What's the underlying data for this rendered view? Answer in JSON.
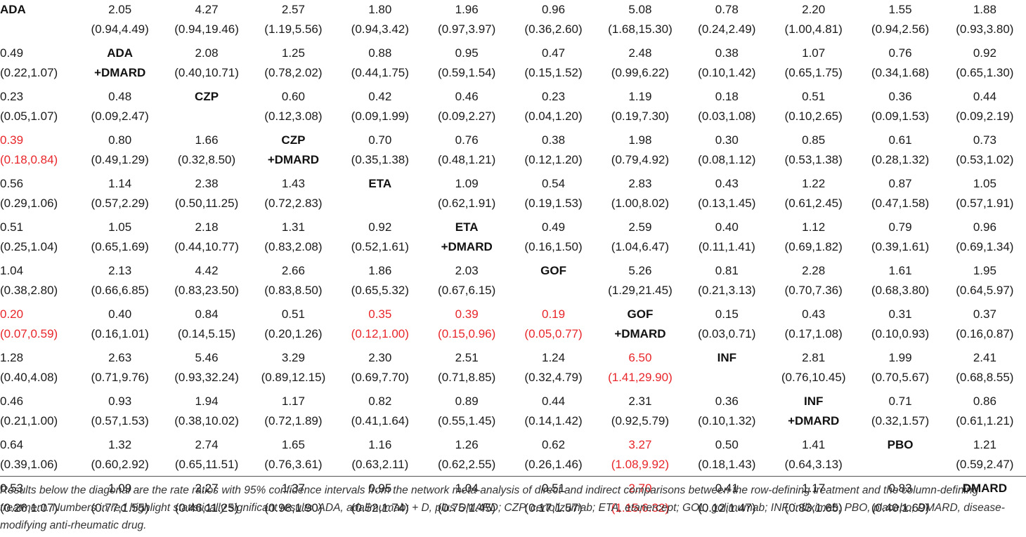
{
  "colors": {
    "significant": "#e8262a",
    "text": "#1a1a1a",
    "rule": "#555555"
  },
  "table": {
    "rows": [
      [
        {
          "l1": "ADA",
          "diag": true
        },
        {
          "l1": "2.05",
          "l2": "(0.94,4.49)"
        },
        {
          "l1": "4.27",
          "l2": "(0.94,19.46)"
        },
        {
          "l1": "2.57",
          "l2": "(1.19,5.56)"
        },
        {
          "l1": "1.80",
          "l2": "(0.94,3.42)"
        },
        {
          "l1": "1.96",
          "l2": "(0.97,3.97)"
        },
        {
          "l1": "0.96",
          "l2": "(0.36,2.60)"
        },
        {
          "l1": "5.08",
          "l2": "(1.68,15.30)"
        },
        {
          "l1": "0.78",
          "l2": "(0.24,2.49)"
        },
        {
          "l1": "2.20",
          "l2": "(1.00,4.81)"
        },
        {
          "l1": "1.55",
          "l2": "(0.94,2.56)"
        },
        {
          "l1": "1.88",
          "l2": "(0.93,3.80)"
        }
      ],
      [
        {
          "l1": "0.49",
          "l2": "(0.22,1.07)"
        },
        {
          "l1": "ADA",
          "l2": "+DMARD",
          "diag": true
        },
        {
          "l1": "2.08",
          "l2": "(0.40,10.71)"
        },
        {
          "l1": "1.25",
          "l2": "(0.78,2.02)"
        },
        {
          "l1": "0.88",
          "l2": "(0.44,1.75)"
        },
        {
          "l1": "0.95",
          "l2": "(0.59,1.54)"
        },
        {
          "l1": "0.47",
          "l2": "(0.15,1.52)"
        },
        {
          "l1": "2.48",
          "l2": "(0.99,6.22)"
        },
        {
          "l1": "0.38",
          "l2": "(0.10,1.42)"
        },
        {
          "l1": "1.07",
          "l2": "(0.65,1.75)"
        },
        {
          "l1": "0.76",
          "l2": "(0.34,1.68)"
        },
        {
          "l1": "0.92",
          "l2": "(0.65,1.30)"
        }
      ],
      [
        {
          "l1": "0.23",
          "l2": "(0.05,1.07)"
        },
        {
          "l1": "0.48",
          "l2": "(0.09,2.47)"
        },
        {
          "l1": "CZP",
          "diag": true
        },
        {
          "l1": "0.60",
          "l2": "(0.12,3.08)"
        },
        {
          "l1": "0.42",
          "l2": "(0.09,1.99)"
        },
        {
          "l1": "0.46",
          "l2": "(0.09,2.27)"
        },
        {
          "l1": "0.23",
          "l2": "(0.04,1.20)"
        },
        {
          "l1": "1.19",
          "l2": "(0.19,7.30)"
        },
        {
          "l1": "0.18",
          "l2": "(0.03,1.08)"
        },
        {
          "l1": "0.51",
          "l2": "(0.10,2.65)"
        },
        {
          "l1": "0.36",
          "l2": "(0.09,1.53)"
        },
        {
          "l1": "0.44",
          "l2": "(0.09,2.19)"
        }
      ],
      [
        {
          "l1": "0.39",
          "l2": "(0.18,0.84)",
          "sig": true
        },
        {
          "l1": "0.80",
          "l2": "(0.49,1.29)"
        },
        {
          "l1": "1.66",
          "l2": "(0.32,8.50)"
        },
        {
          "l1": "CZP",
          "l2": "+DMARD",
          "diag": true
        },
        {
          "l1": "0.70",
          "l2": "(0.35,1.38)"
        },
        {
          "l1": "0.76",
          "l2": "(0.48,1.21)"
        },
        {
          "l1": "0.38",
          "l2": "(0.12,1.20)"
        },
        {
          "l1": "1.98",
          "l2": "(0.79,4.92)"
        },
        {
          "l1": "0.30",
          "l2": "(0.08,1.12)"
        },
        {
          "l1": "0.85",
          "l2": "(0.53,1.38)"
        },
        {
          "l1": "0.61",
          "l2": "(0.28,1.32)"
        },
        {
          "l1": "0.73",
          "l2": "(0.53,1.02)"
        }
      ],
      [
        {
          "l1": "0.56",
          "l2": "(0.29,1.06)"
        },
        {
          "l1": "1.14",
          "l2": "(0.57,2.29)"
        },
        {
          "l1": "2.38",
          "l2": "(0.50,11.25)"
        },
        {
          "l1": "1.43",
          "l2": "(0.72,2.83)"
        },
        {
          "l1": "ETA",
          "diag": true
        },
        {
          "l1": "1.09",
          "l2": "(0.62,1.91)"
        },
        {
          "l1": "0.54",
          "l2": "(0.19,1.53)"
        },
        {
          "l1": "2.83",
          "l2": "(1.00,8.02)"
        },
        {
          "l1": "0.43",
          "l2": "(0.13,1.45)"
        },
        {
          "l1": "1.22",
          "l2": "(0.61,2.45)"
        },
        {
          "l1": "0.87",
          "l2": "(0.47,1.58)"
        },
        {
          "l1": "1.05",
          "l2": "(0.57,1.91)"
        }
      ],
      [
        {
          "l1": "0.51",
          "l2": "(0.25,1.04)"
        },
        {
          "l1": "1.05",
          "l2": "(0.65,1.69)"
        },
        {
          "l1": "2.18",
          "l2": "(0.44,10.77)"
        },
        {
          "l1": "1.31",
          "l2": "(0.83,2.08)"
        },
        {
          "l1": "0.92",
          "l2": "(0.52,1.61)"
        },
        {
          "l1": "ETA",
          "l2": "+DMARD",
          "diag": true
        },
        {
          "l1": "0.49",
          "l2": "(0.16,1.50)"
        },
        {
          "l1": "2.59",
          "l2": "(1.04,6.47)"
        },
        {
          "l1": "0.40",
          "l2": "(0.11,1.41)"
        },
        {
          "l1": "1.12",
          "l2": "(0.69,1.82)"
        },
        {
          "l1": "0.79",
          "l2": "(0.39,1.61)"
        },
        {
          "l1": "0.96",
          "l2": "(0.69,1.34)"
        }
      ],
      [
        {
          "l1": "1.04",
          "l2": "(0.38,2.80)"
        },
        {
          "l1": "2.13",
          "l2": "(0.66,6.85)"
        },
        {
          "l1": "4.42",
          "l2": "(0.83,23.50)"
        },
        {
          "l1": "2.66",
          "l2": "(0.83,8.50)"
        },
        {
          "l1": "1.86",
          "l2": "(0.65,5.32)"
        },
        {
          "l1": "2.03",
          "l2": "(0.67,6.15)"
        },
        {
          "l1": "GOF",
          "diag": true
        },
        {
          "l1": "5.26",
          "l2": "(1.29,21.45)"
        },
        {
          "l1": "0.81",
          "l2": "(0.21,3.13)"
        },
        {
          "l1": "2.28",
          "l2": "(0.70,7.36)"
        },
        {
          "l1": "1.61",
          "l2": "(0.68,3.80)"
        },
        {
          "l1": "1.95",
          "l2": "(0.64,5.97)"
        }
      ],
      [
        {
          "l1": "0.20",
          "l2": "(0.07,0.59)",
          "sig": true
        },
        {
          "l1": "0.40",
          "l2": "(0.16,1.01)"
        },
        {
          "l1": "0.84",
          "l2": "(0.14,5.15)"
        },
        {
          "l1": "0.51",
          "l2": "(0.20,1.26)"
        },
        {
          "l1": "0.35",
          "l2": "(0.12,1.00)",
          "sig": true
        },
        {
          "l1": "0.39",
          "l2": "(0.15,0.96)",
          "sig": true
        },
        {
          "l1": "0.19",
          "l2": "(0.05,0.77)",
          "sig": true
        },
        {
          "l1": "GOF",
          "l2": "+DMARD",
          "diag": true
        },
        {
          "l1": "0.15",
          "l2": "(0.03,0.71)"
        },
        {
          "l1": "0.43",
          "l2": "(0.17,1.08)"
        },
        {
          "l1": "0.31",
          "l2": "(0.10,0.93)"
        },
        {
          "l1": "0.37",
          "l2": "(0.16,0.87)"
        }
      ],
      [
        {
          "l1": "1.28",
          "l2": "(0.40,4.08)"
        },
        {
          "l1": "2.63",
          "l2": "(0.71,9.76)"
        },
        {
          "l1": "5.46",
          "l2": "(0.93,32.24)"
        },
        {
          "l1": "3.29",
          "l2": "(0.89,12.15)"
        },
        {
          "l1": "2.30",
          "l2": "(0.69,7.70)"
        },
        {
          "l1": "2.51",
          "l2": "(0.71,8.85)"
        },
        {
          "l1": "1.24",
          "l2": "(0.32,4.79)"
        },
        {
          "l1": "6.50",
          "l2": "(1.41,29.90)",
          "sig": true
        },
        {
          "l1": "INF",
          "diag": true
        },
        {
          "l1": "2.81",
          "l2": "(0.76,10.45)"
        },
        {
          "l1": "1.99",
          "l2": "(0.70,5.67)"
        },
        {
          "l1": "2.41",
          "l2": "(0.68,8.55)"
        }
      ],
      [
        {
          "l1": "0.46",
          "l2": "(0.21,1.00)"
        },
        {
          "l1": "0.93",
          "l2": "(0.57,1.53)"
        },
        {
          "l1": "1.94",
          "l2": "(0.38,10.02)"
        },
        {
          "l1": "1.17",
          "l2": "(0.72,1.89)"
        },
        {
          "l1": "0.82",
          "l2": "(0.41,1.64)"
        },
        {
          "l1": "0.89",
          "l2": "(0.55,1.45)"
        },
        {
          "l1": "0.44",
          "l2": "(0.14,1.42)"
        },
        {
          "l1": "2.31",
          "l2": "(0.92,5.79)"
        },
        {
          "l1": "0.36",
          "l2": "(0.10,1.32)"
        },
        {
          "l1": "INF",
          "l2": "+DMARD",
          "diag": true
        },
        {
          "l1": "0.71",
          "l2": "(0.32,1.57)"
        },
        {
          "l1": "0.86",
          "l2": "(0.61,1.21)"
        }
      ],
      [
        {
          "l1": "0.64",
          "l2": "(0.39,1.06)"
        },
        {
          "l1": "1.32",
          "l2": "(0.60,2.92)"
        },
        {
          "l1": "2.74",
          "l2": "(0.65,11.51)"
        },
        {
          "l1": "1.65",
          "l2": "(0.76,3.61)"
        },
        {
          "l1": "1.16",
          "l2": "(0.63,2.11)"
        },
        {
          "l1": "1.26",
          "l2": "(0.62,2.55)"
        },
        {
          "l1": "0.62",
          "l2": "(0.26,1.46)"
        },
        {
          "l1": "3.27",
          "l2": "(1.08,9.92)",
          "sig": true
        },
        {
          "l1": "0.50",
          "l2": "(0.18,1.43)"
        },
        {
          "l1": "1.41",
          "l2": "(0.64,3.13)"
        },
        {
          "l1": "PBO",
          "diag": true
        },
        {
          "l1": "1.21",
          "l2": "(0.59,2.47)"
        }
      ],
      [
        {
          "l1": "0.53",
          "l2": "(0.26,1.07)"
        },
        {
          "l1": "1.09",
          "l2": "(0.77,1.55)"
        },
        {
          "l1": "2.27",
          "l2": "(0.46,11.25)"
        },
        {
          "l1": "1.37",
          "l2": "(0.98,1.90)"
        },
        {
          "l1": "0.95",
          "l2": "(0.52,1.74)"
        },
        {
          "l1": "1.04",
          "l2": "(0.75,1.45)"
        },
        {
          "l1": "0.51",
          "l2": "(0.17,1.57)"
        },
        {
          "l1": "2.70",
          "l2": "(1.15,6.32)",
          "sig": true
        },
        {
          "l1": "0.41",
          "l2": "(0.12,1.47)"
        },
        {
          "l1": "1.17",
          "l2": "(0.83,1.65)"
        },
        {
          "l1": "0.83",
          "l2": "(0.40,1.69)"
        },
        {
          "l1": "DMARD",
          "diag": true
        }
      ]
    ]
  },
  "footnote": "Results below the diagonal are the rate ratios with 95% confidence intervals from the network meta-analysis of direct and indirect comparisons between the row-defining treatment and the column-defining treatment. Numbers in red highlight statistically significant results. ADA, adalimumab; + D, plus DMARD; CZP, certolizumab; ETA, etanercept; GOL, golimumab; INF, infliximab; PBO, placebo; DMARD, disease-modifying anti-rheumatic drug."
}
